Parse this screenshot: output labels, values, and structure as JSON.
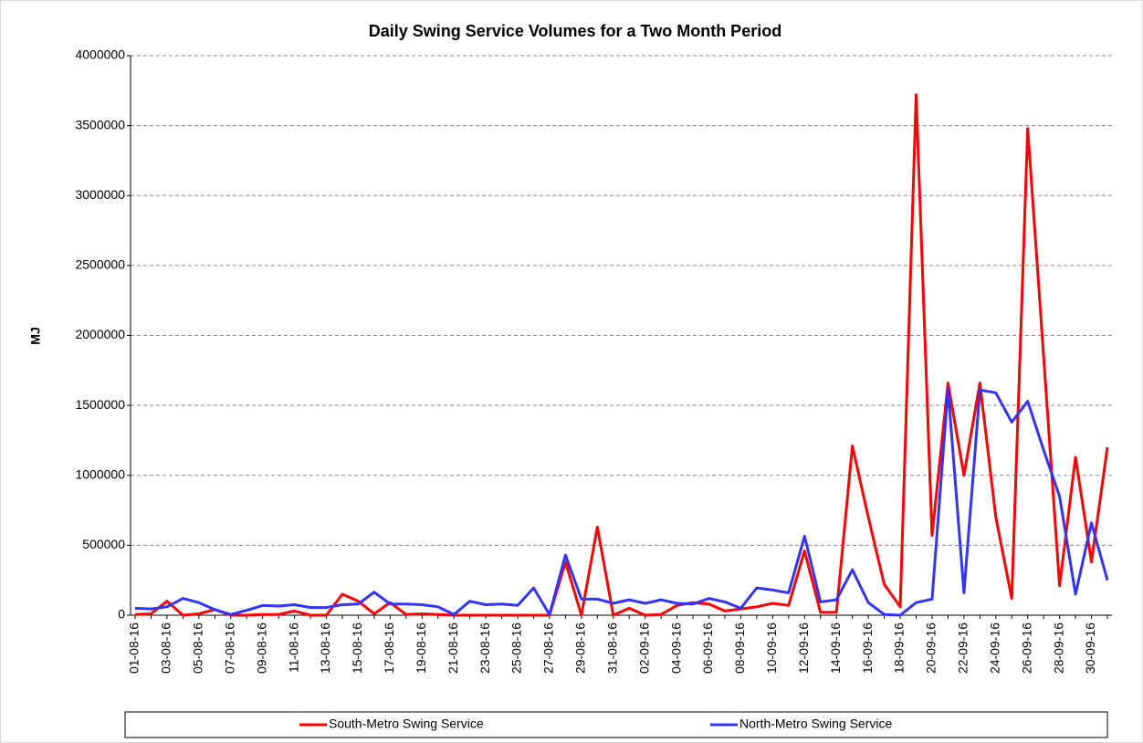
{
  "chart_data": {
    "type": "line",
    "title": "Daily Swing Service Volumes for a Two Month Period",
    "y_label": "MJ",
    "categories": [
      "01-08-16",
      null,
      "03-08-16",
      null,
      "05-08-16",
      null,
      "07-08-16",
      null,
      "09-08-16",
      null,
      "11-08-16",
      null,
      "13-08-16",
      null,
      "15-08-16",
      null,
      "17-08-16",
      null,
      "19-08-16",
      null,
      "21-08-16",
      null,
      "23-08-16",
      null,
      "25-08-16",
      null,
      "27-08-16",
      null,
      "29-08-16",
      null,
      "31-08-16",
      null,
      "02-09-16",
      null,
      "04-09-16",
      null,
      "06-09-16",
      null,
      "08-09-16",
      null,
      "10-09-16",
      null,
      "12-09-16",
      null,
      "14-09-16",
      null,
      "16-09-16",
      null,
      "18-09-16",
      null,
      "20-09-16",
      null,
      "22-09-16",
      null,
      "24-09-16",
      null,
      "26-09-16",
      null,
      "28-09-16",
      null,
      "30-09-16",
      null
    ],
    "series": [
      {
        "name": "South-Metro Swing Service",
        "color": "#ff0000",
        "values": [
          5000,
          10000,
          100000,
          0,
          10000,
          40000,
          0,
          0,
          5000,
          5000,
          30000,
          0,
          0,
          150000,
          100000,
          10000,
          90000,
          5000,
          10000,
          5000,
          0,
          0,
          0,
          0,
          0,
          0,
          0,
          380000,
          0,
          630000,
          0,
          50000,
          0,
          5000,
          70000,
          90000,
          80000,
          30000,
          45000,
          60000,
          85000,
          70000,
          460000,
          20000,
          20000,
          1210000,
          700000,
          220000,
          60000,
          3720000,
          570000,
          1660000,
          1000000,
          1660000,
          700000,
          120000,
          3480000,
          1850000,
          210000,
          1130000,
          380000,
          1200000
        ]
      },
      {
        "name": "North-Metro Swing Service",
        "color": "#3333ff",
        "values": [
          50000,
          45000,
          60000,
          120000,
          90000,
          40000,
          5000,
          35000,
          70000,
          65000,
          75000,
          55000,
          55000,
          75000,
          80000,
          165000,
          80000,
          80000,
          75000,
          60000,
          5000,
          100000,
          75000,
          80000,
          70000,
          195000,
          5000,
          430000,
          115000,
          115000,
          85000,
          110000,
          85000,
          110000,
          85000,
          80000,
          120000,
          95000,
          50000,
          195000,
          180000,
          160000,
          565000,
          95000,
          110000,
          325000,
          90000,
          5000,
          0,
          90000,
          115000,
          1620000,
          160000,
          1610000,
          1590000,
          1380000,
          1530000,
          1180000,
          850000,
          150000,
          660000,
          250000
        ]
      }
    ],
    "ylim": [
      0,
      4000000
    ],
    "yticks": [
      0,
      500000,
      1000000,
      1500000,
      2000000,
      2500000,
      3000000,
      3500000,
      4000000
    ],
    "grid": true,
    "legend": "bottom"
  }
}
